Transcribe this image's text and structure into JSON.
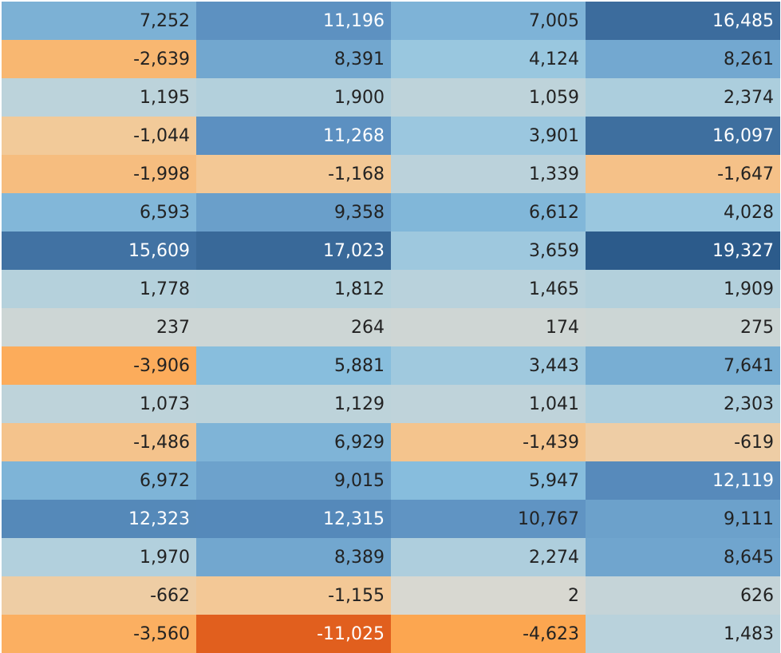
{
  "chart_data": {
    "type": "heatmap",
    "title": "",
    "xlabel": "",
    "ylabel": "",
    "palette": {
      "neg_max": "#e15f1e",
      "neg_mid": "#fda852",
      "neg_low": "#f2cb9c",
      "neutral": "#d9d8d1",
      "pos_low": "#b8d2dc",
      "pos_mid": "#8cc2e0",
      "pos_high": "#5b8fc0",
      "pos_max": "#2c5b8b"
    },
    "rows": [
      {
        "values": [
          7252,
          11196,
          7005,
          16485
        ],
        "labels": [
          "7,252",
          "11,196",
          "7,005",
          "16,485"
        ]
      },
      {
        "values": [
          -2639,
          8391,
          4124,
          8261
        ],
        "labels": [
          "-2,639",
          "8,391",
          "4,124",
          "8,261"
        ]
      },
      {
        "values": [
          1195,
          1900,
          1059,
          2374
        ],
        "labels": [
          "1,195",
          "1,900",
          "1,059",
          "2,374"
        ]
      },
      {
        "values": [
          -1044,
          11268,
          3901,
          16097
        ],
        "labels": [
          "-1,044",
          "11,268",
          "3,901",
          "16,097"
        ]
      },
      {
        "values": [
          -1998,
          -1168,
          1339,
          -1647
        ],
        "labels": [
          "-1,998",
          "-1,168",
          "1,339",
          "-1,647"
        ]
      },
      {
        "values": [
          6593,
          9358,
          6612,
          4028
        ],
        "labels": [
          "6,593",
          "9,358",
          "6,612",
          "4,028"
        ]
      },
      {
        "values": [
          15609,
          17023,
          3659,
          19327
        ],
        "labels": [
          "15,609",
          "17,023",
          "3,659",
          "19,327"
        ]
      },
      {
        "values": [
          1778,
          1812,
          1465,
          1909
        ],
        "labels": [
          "1,778",
          "1,812",
          "1,465",
          "1,909"
        ]
      },
      {
        "values": [
          237,
          264,
          174,
          275
        ],
        "labels": [
          "237",
          "264",
          "174",
          "275"
        ]
      },
      {
        "values": [
          -3906,
          5881,
          3443,
          7641
        ],
        "labels": [
          "-3,906",
          "5,881",
          "3,443",
          "7,641"
        ]
      },
      {
        "values": [
          1073,
          1129,
          1041,
          2303
        ],
        "labels": [
          "1,073",
          "1,129",
          "1,041",
          "2,303"
        ]
      },
      {
        "values": [
          -1486,
          6929,
          -1439,
          -619
        ],
        "labels": [
          "-1,486",
          "6,929",
          "-1,439",
          "-619"
        ]
      },
      {
        "values": [
          6972,
          9015,
          5947,
          12119
        ],
        "labels": [
          "6,972",
          "9,015",
          "5,947",
          "12,119"
        ]
      },
      {
        "values": [
          12323,
          12315,
          10767,
          9111
        ],
        "labels": [
          "12,323",
          "12,315",
          "10,767",
          "9,111"
        ]
      },
      {
        "values": [
          1970,
          8389,
          2274,
          8645
        ],
        "labels": [
          "1,970",
          "8,389",
          "2,274",
          "8,645"
        ]
      },
      {
        "values": [
          -662,
          -1155,
          2,
          626
        ],
        "labels": [
          "-662",
          "-1,155",
          "2",
          "626"
        ]
      },
      {
        "values": [
          -3560,
          -11025,
          -4623,
          1483
        ],
        "labels": [
          "-3,560",
          "-11,025",
          "-4,623",
          "1,483"
        ]
      }
    ],
    "color_scale": {
      "min": -11025,
      "max": 19327,
      "center": 0
    }
  }
}
